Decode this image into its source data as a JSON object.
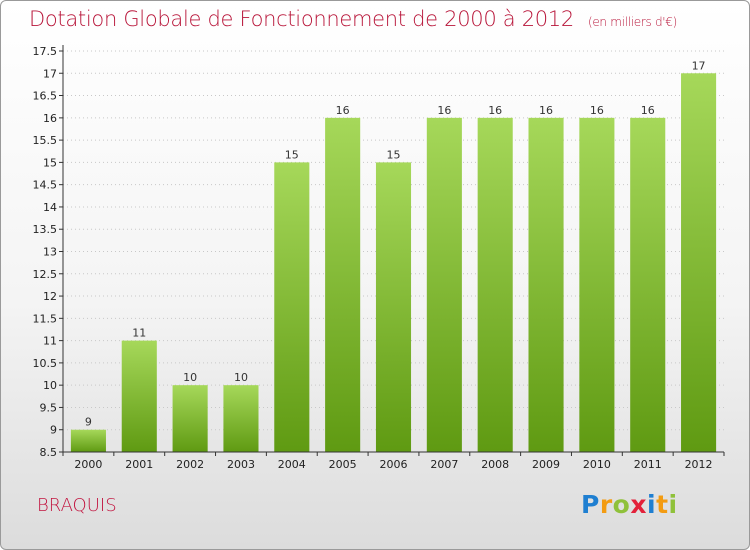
{
  "header": {
    "title": "Dotation Globale de Fonctionnement de 2000 à 2012",
    "unit": "(en milliers d'€)"
  },
  "footer": {
    "commune": "BRAQUIS",
    "logo": {
      "letters": [
        "P",
        "r",
        "o",
        "x",
        "i",
        "t",
        "i"
      ],
      "colors": [
        "#1f7fd1",
        "#f39c12",
        "#8fc13a",
        "#e3213a",
        "#1f7fd1",
        "#f39c12",
        "#8fc13a"
      ]
    }
  },
  "chart_data": {
    "type": "bar",
    "categories": [
      "2000",
      "2001",
      "2002",
      "2003",
      "2004",
      "2005",
      "2006",
      "2007",
      "2008",
      "2009",
      "2010",
      "2011",
      "2012"
    ],
    "values": [
      9,
      11,
      10,
      10,
      15,
      16,
      15,
      16,
      16,
      16,
      16,
      16,
      17
    ],
    "data_labels": [
      "9",
      "11",
      "10",
      "10",
      "15",
      "16",
      "15",
      "16",
      "16",
      "16",
      "16",
      "16",
      "17"
    ],
    "ylim": [
      8.5,
      17.5
    ],
    "yticks": [
      8.5,
      9,
      9.5,
      10,
      10.5,
      11,
      11.5,
      12,
      12.5,
      13,
      13.5,
      14,
      14.5,
      15,
      15.5,
      16,
      16.5,
      17,
      17.5
    ],
    "ytick_labels": [
      "8.5",
      "9",
      "9.5",
      "10",
      "10.5",
      "11",
      "11.5",
      "12",
      "12.5",
      "13",
      "13.5",
      "14",
      "14.5",
      "15",
      "15.5",
      "16",
      "16.5",
      "17",
      "17.5"
    ],
    "grid": true,
    "colors": {
      "bar_light": "#a6d85a",
      "bar_dark": "#5f9a12",
      "grid": "#c8c8c8",
      "axis": "#333333"
    }
  }
}
